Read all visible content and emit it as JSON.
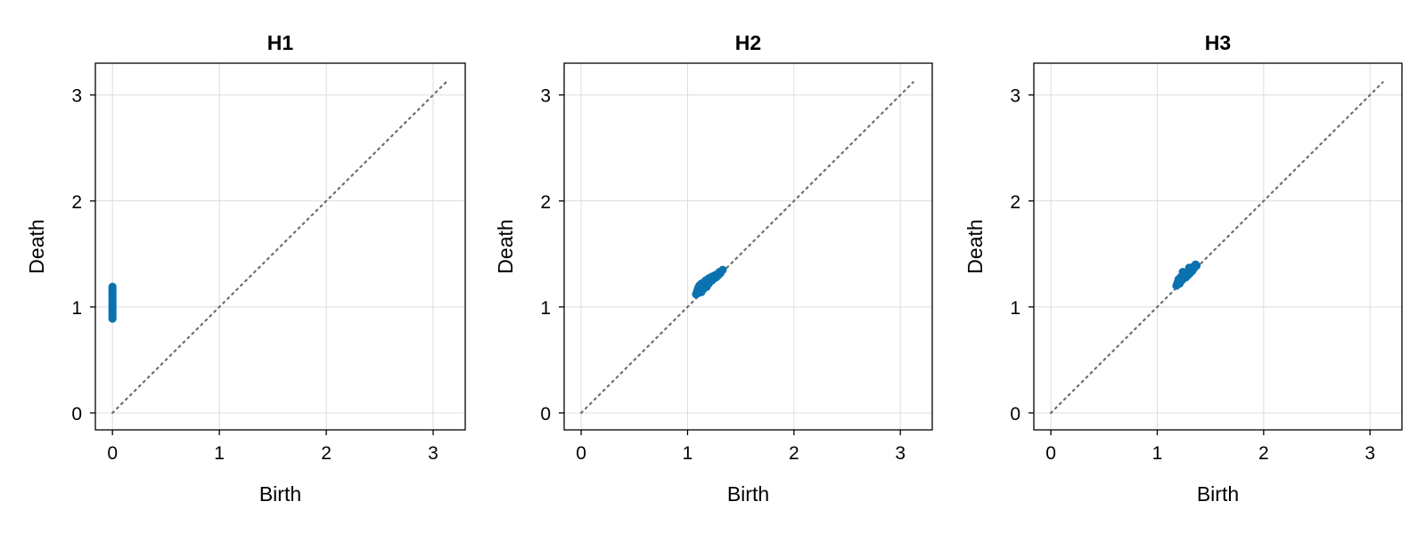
{
  "colors": {
    "point": "#0b72b0",
    "diagonal": "#6e6e6e",
    "grid": "#dcdcdc",
    "frame": "#000000"
  },
  "chart_data": [
    {
      "type": "scatter",
      "title": "H1",
      "xlabel": "Birth",
      "ylabel": "Death",
      "xlim": [
        -0.16,
        3.3
      ],
      "ylim": [
        -0.16,
        3.3
      ],
      "xticks": [
        "0",
        "1",
        "2",
        "3"
      ],
      "yticks": [
        "0",
        "1",
        "2",
        "3"
      ],
      "grid": true,
      "diagonal": {
        "from": [
          0,
          0
        ],
        "to": [
          3.12,
          3.12
        ],
        "style": "dotted"
      },
      "points": [
        [
          0,
          0.89
        ],
        [
          0,
          0.91
        ],
        [
          0,
          0.93
        ],
        [
          0,
          0.95
        ],
        [
          0,
          0.97
        ],
        [
          0,
          0.99
        ],
        [
          0,
          1.01
        ],
        [
          0,
          1.03
        ],
        [
          0,
          1.05
        ],
        [
          0,
          1.07
        ],
        [
          0,
          1.09
        ],
        [
          0,
          1.11
        ],
        [
          0,
          1.13
        ],
        [
          0,
          1.15
        ],
        [
          0,
          1.17
        ],
        [
          0,
          1.19
        ]
      ]
    },
    {
      "type": "scatter",
      "title": "H2",
      "xlabel": "Birth",
      "ylabel": "Death",
      "xlim": [
        -0.16,
        3.3
      ],
      "ylim": [
        -0.16,
        3.3
      ],
      "xticks": [
        "0",
        "1",
        "2",
        "3"
      ],
      "yticks": [
        "0",
        "1",
        "2",
        "3"
      ],
      "grid": true,
      "diagonal": {
        "from": [
          0,
          0
        ],
        "to": [
          3.12,
          3.12
        ],
        "style": "dotted"
      },
      "points": [
        [
          1.08,
          1.12
        ],
        [
          1.09,
          1.15
        ],
        [
          1.1,
          1.18
        ],
        [
          1.1,
          1.13
        ],
        [
          1.11,
          1.2
        ],
        [
          1.12,
          1.16
        ],
        [
          1.13,
          1.22
        ],
        [
          1.14,
          1.18
        ],
        [
          1.15,
          1.23
        ],
        [
          1.15,
          1.17
        ],
        [
          1.16,
          1.2
        ],
        [
          1.17,
          1.25
        ],
        [
          1.18,
          1.21
        ],
        [
          1.19,
          1.26
        ],
        [
          1.2,
          1.22
        ],
        [
          1.2,
          1.27
        ],
        [
          1.21,
          1.24
        ],
        [
          1.22,
          1.28
        ],
        [
          1.23,
          1.25
        ],
        [
          1.24,
          1.29
        ],
        [
          1.25,
          1.27
        ],
        [
          1.26,
          1.3
        ],
        [
          1.27,
          1.28
        ],
        [
          1.28,
          1.31
        ],
        [
          1.29,
          1.3
        ],
        [
          1.3,
          1.33
        ],
        [
          1.31,
          1.32
        ],
        [
          1.33,
          1.35
        ],
        [
          1.13,
          1.14
        ],
        [
          1.18,
          1.19
        ]
      ]
    },
    {
      "type": "scatter",
      "title": "H3",
      "xlabel": "Birth",
      "ylabel": "Death",
      "xlim": [
        -0.16,
        3.3
      ],
      "ylim": [
        -0.16,
        3.3
      ],
      "xticks": [
        "0",
        "1",
        "2",
        "3"
      ],
      "yticks": [
        "0",
        "1",
        "2",
        "3"
      ],
      "grid": true,
      "diagonal": {
        "from": [
          0,
          0
        ],
        "to": [
          3.12,
          3.12
        ],
        "style": "dotted"
      },
      "points": [
        [
          1.18,
          1.2
        ],
        [
          1.19,
          1.23
        ],
        [
          1.2,
          1.26
        ],
        [
          1.21,
          1.22
        ],
        [
          1.22,
          1.28
        ],
        [
          1.23,
          1.25
        ],
        [
          1.24,
          1.29
        ],
        [
          1.25,
          1.27
        ],
        [
          1.26,
          1.31
        ],
        [
          1.27,
          1.28
        ],
        [
          1.28,
          1.33
        ],
        [
          1.29,
          1.3
        ],
        [
          1.3,
          1.34
        ],
        [
          1.31,
          1.32
        ],
        [
          1.32,
          1.36
        ],
        [
          1.33,
          1.34
        ],
        [
          1.34,
          1.38
        ],
        [
          1.35,
          1.37
        ],
        [
          1.36,
          1.4
        ],
        [
          1.37,
          1.39
        ],
        [
          1.24,
          1.33
        ],
        [
          1.3,
          1.37
        ]
      ]
    }
  ]
}
